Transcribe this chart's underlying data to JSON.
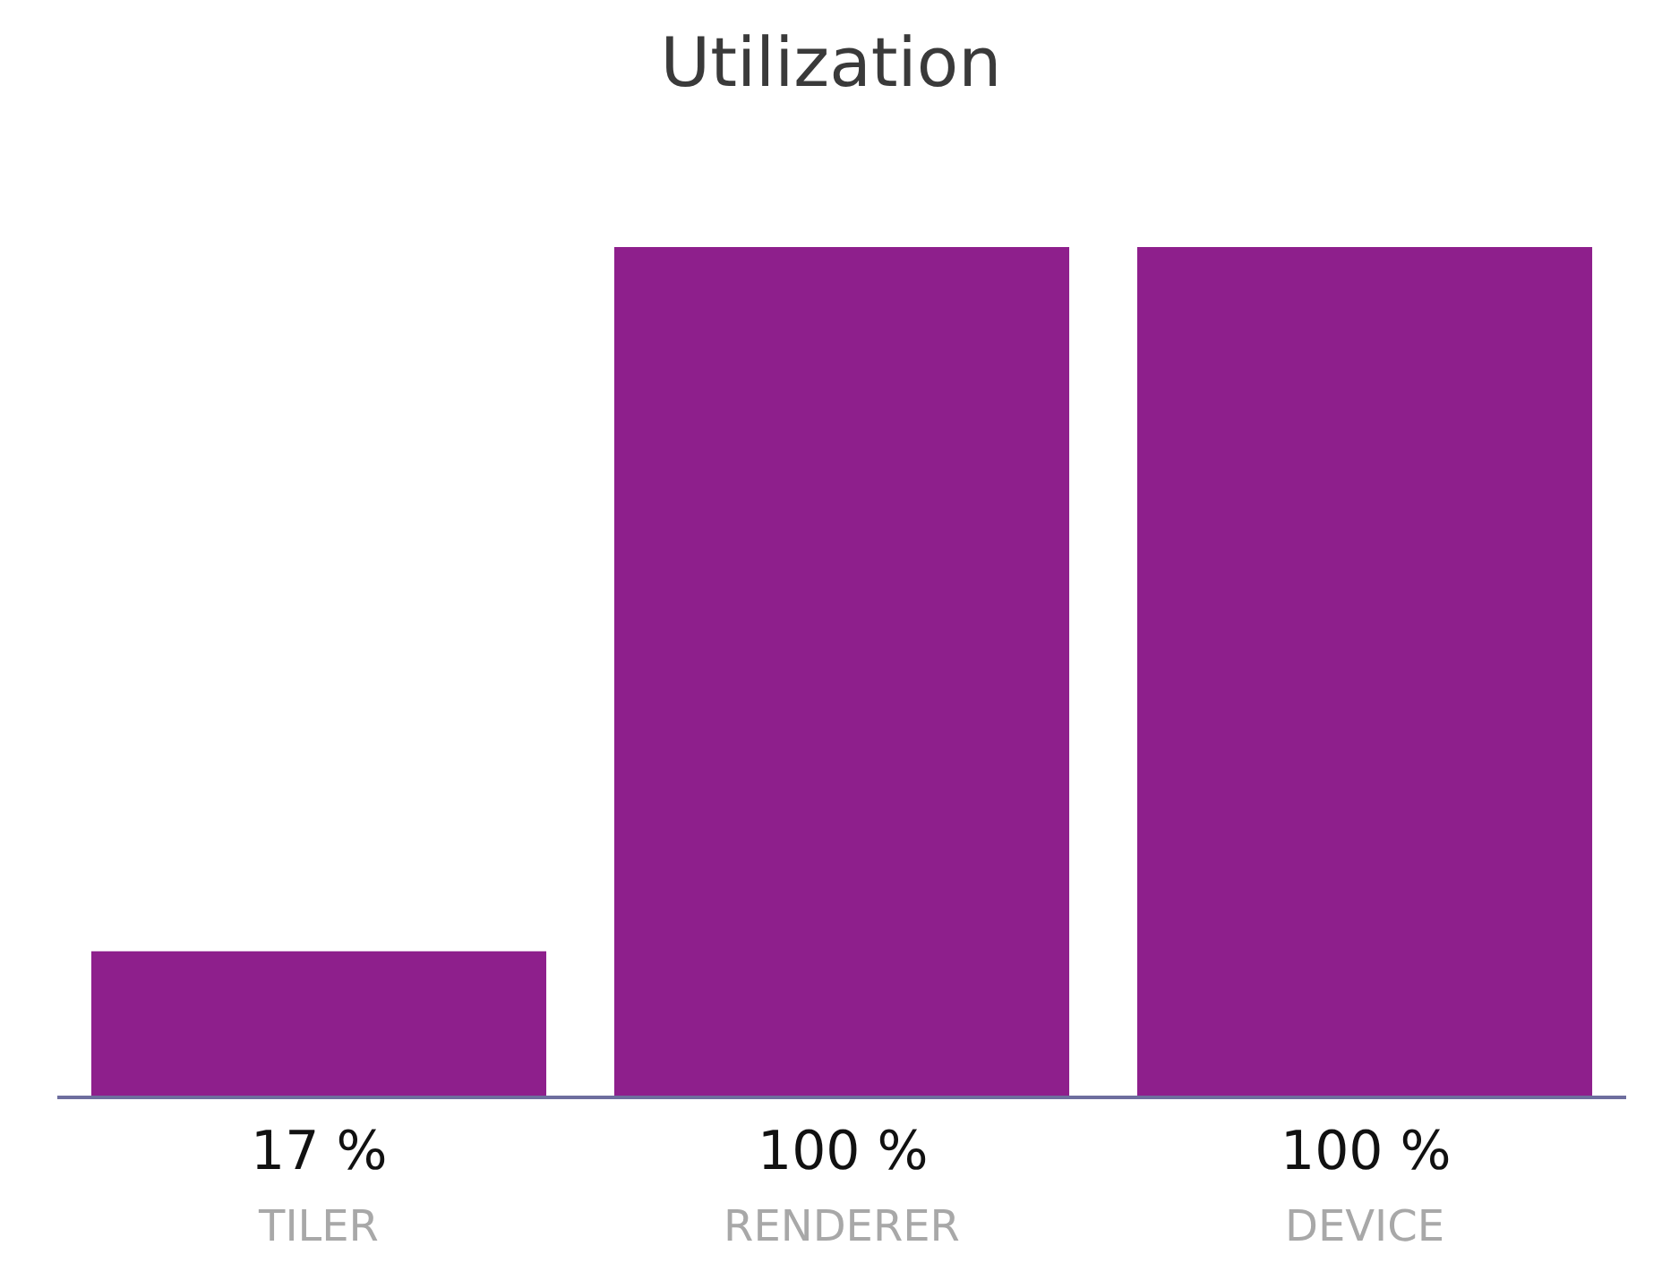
{
  "chart_data": {
    "type": "bar",
    "title": "Utilization",
    "categories": [
      "TILER",
      "RENDERER",
      "DEVICE"
    ],
    "values": [
      17,
      100,
      100
    ],
    "value_labels": [
      "17 %",
      "100 %",
      "100 %"
    ],
    "color": "#8e1f8c",
    "ylim": [
      0,
      100
    ],
    "grid": false,
    "legend": false
  }
}
